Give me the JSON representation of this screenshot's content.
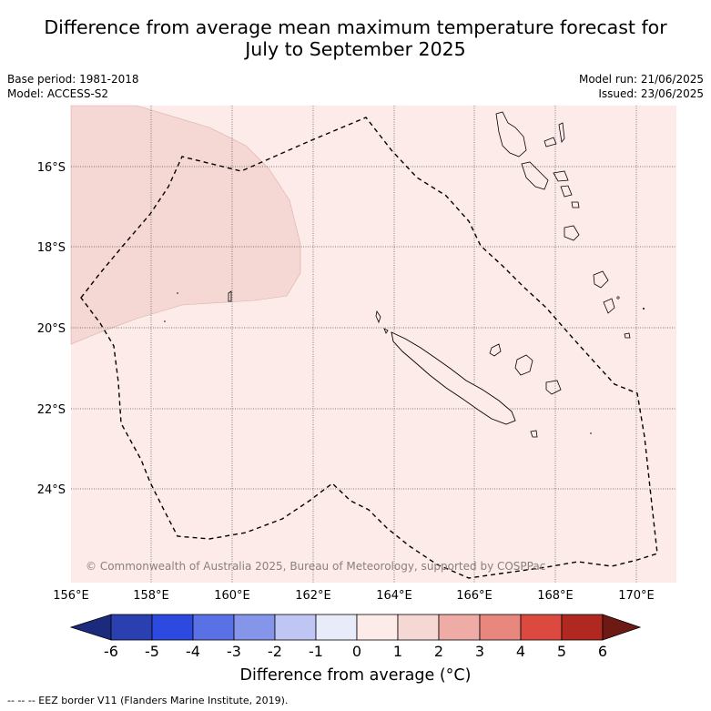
{
  "title_line1": "Difference from average mean maximum temperature forecast for",
  "title_line2": "July to September 2025",
  "meta": {
    "base_period": "Base period: 1981-2018",
    "model": "Model: ACCESS-S2",
    "model_run": "Model run: 21/06/2025",
    "issued": "Issued: 23/06/2025"
  },
  "axes": {
    "lon_ticks": [
      "156°E",
      "158°E",
      "160°E",
      "162°E",
      "164°E",
      "166°E",
      "168°E",
      "170°E"
    ],
    "lat_ticks": [
      "16°S",
      "18°S",
      "20°S",
      "22°S",
      "24°S"
    ]
  },
  "colorbar": {
    "ticks": [
      "-6",
      "-5",
      "-4",
      "-3",
      "-2",
      "-1",
      "0",
      "1",
      "2",
      "3",
      "4",
      "5",
      "6"
    ],
    "colors": [
      "#1c2a7e",
      "#2a3fb0",
      "#2d4ae0",
      "#5a71e6",
      "#8595ea",
      "#c0c6f3",
      "#e8ebfa",
      "#fcebe9",
      "#f5d7d3",
      "#efaba6",
      "#e8877d",
      "#dc4a3f",
      "#b0281f",
      "#6e1a14"
    ],
    "label": "Difference from average (°C)"
  },
  "copyright": "© Commonwealth of Australia 2025, Bureau of Meteorology, supported by COSPPac",
  "footer": "--  --  -- EEZ border V11 (Flanders Marine Institute, 2019)."
}
